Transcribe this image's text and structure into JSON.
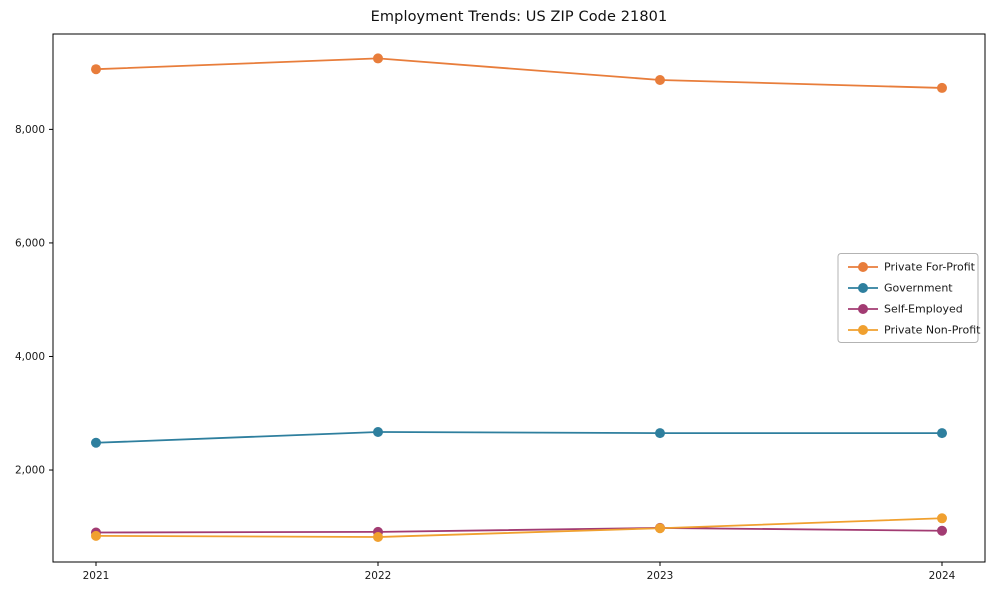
{
  "chart_data": {
    "type": "line",
    "title": "Employment Trends: US ZIP Code 21801",
    "categories": [
      "2021",
      "2022",
      "2023",
      "2024"
    ],
    "series": [
      {
        "name": "Private For-Profit",
        "color": "#E87D3B",
        "values": [
          9060,
          9250,
          8870,
          8730
        ]
      },
      {
        "name": "Government",
        "color": "#2E7F9E",
        "values": [
          2480,
          2670,
          2650,
          2650
        ]
      },
      {
        "name": "Self-Employed",
        "color": "#A23B72",
        "values": [
          900,
          910,
          980,
          930
        ]
      },
      {
        "name": "Private Non-Profit",
        "color": "#F0A02F",
        "values": [
          840,
          820,
          975,
          1150
        ]
      }
    ],
    "xlabel": "",
    "ylabel": "",
    "ylim": [
      380,
      9680
    ],
    "yticks": [
      2000,
      4000,
      6000,
      8000
    ],
    "ytick_labels": [
      "2,000",
      "4,000",
      "6,000",
      "8,000"
    ],
    "grid": false,
    "legend_position": "center right",
    "colors": {
      "axis": "#000000",
      "text": "#1a1a1a",
      "legend_border": "#b3b3b3",
      "background": "#ffffff"
    }
  }
}
